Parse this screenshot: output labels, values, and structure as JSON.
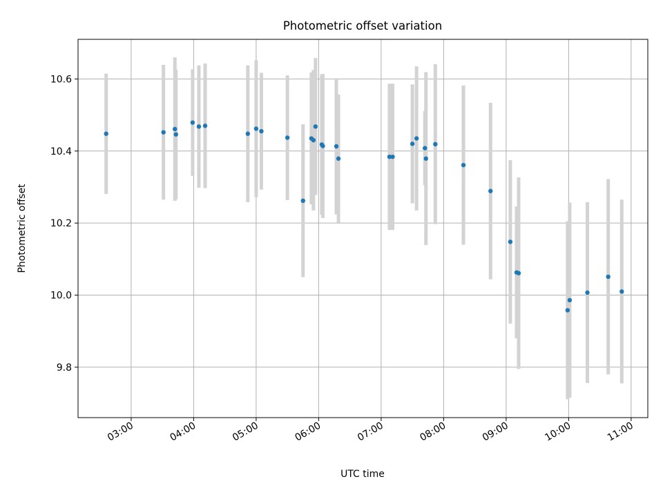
{
  "chart_data": {
    "type": "scatter",
    "title": "Photometric offset variation",
    "xlabel": "UTC time",
    "ylabel": "Photometric offset",
    "x_ticks": [
      "03:00",
      "04:00",
      "05:00",
      "06:00",
      "07:00",
      "08:00",
      "09:00",
      "10:00",
      "11:00"
    ],
    "y_ticks": [
      9.8,
      10.0,
      10.2,
      10.4,
      10.6
    ],
    "xlim": [
      "02:09",
      "11:16"
    ],
    "ylim": [
      9.66,
      10.71
    ],
    "grid": true,
    "colors": {
      "point": "#1f77b4",
      "errorbar": "#d3d3d3"
    },
    "series": [
      {
        "points": [
          {
            "x": "02:36",
            "y": 10.448,
            "err": 0.167
          },
          {
            "x": "03:31",
            "y": 10.452,
            "err": 0.187
          },
          {
            "x": "03:42",
            "y": 10.461,
            "err": 0.199
          },
          {
            "x": "03:43",
            "y": 10.446,
            "err": 0.18
          },
          {
            "x": "03:59",
            "y": 10.479,
            "err": 0.148
          },
          {
            "x": "04:05",
            "y": 10.468,
            "err": 0.17
          },
          {
            "x": "04:11",
            "y": 10.47,
            "err": 0.173
          },
          {
            "x": "04:52",
            "y": 10.448,
            "err": 0.19
          },
          {
            "x": "05:00",
            "y": 10.462,
            "err": 0.19
          },
          {
            "x": "05:05",
            "y": 10.455,
            "err": 0.162
          },
          {
            "x": "05:30",
            "y": 10.437,
            "err": 0.173
          },
          {
            "x": "05:45",
            "y": 10.262,
            "err": 0.212
          },
          {
            "x": "05:53",
            "y": 10.435,
            "err": 0.183
          },
          {
            "x": "05:55",
            "y": 10.43,
            "err": 0.195
          },
          {
            "x": "05:57",
            "y": 10.468,
            "err": 0.19
          },
          {
            "x": "06:03",
            "y": 10.418,
            "err": 0.195
          },
          {
            "x": "06:04",
            "y": 10.414,
            "err": 0.2
          },
          {
            "x": "06:17",
            "y": 10.413,
            "err": 0.189
          },
          {
            "x": "06:19",
            "y": 10.379,
            "err": 0.178
          },
          {
            "x": "07:08",
            "y": 10.384,
            "err": 0.203
          },
          {
            "x": "07:11",
            "y": 10.384,
            "err": 0.203
          },
          {
            "x": "07:30",
            "y": 10.42,
            "err": 0.165
          },
          {
            "x": "07:34",
            "y": 10.435,
            "err": 0.2
          },
          {
            "x": "07:42",
            "y": 10.408,
            "err": 0.103
          },
          {
            "x": "07:43",
            "y": 10.379,
            "err": 0.24
          },
          {
            "x": "07:52",
            "y": 10.419,
            "err": 0.222
          },
          {
            "x": "08:19",
            "y": 10.361,
            "err": 0.221
          },
          {
            "x": "08:45",
            "y": 10.289,
            "err": 0.245
          },
          {
            "x": "09:04",
            "y": 10.148,
            "err": 0.227
          },
          {
            "x": "09:10",
            "y": 10.063,
            "err": 0.183
          },
          {
            "x": "09:12",
            "y": 10.061,
            "err": 0.266
          },
          {
            "x": "09:59",
            "y": 9.958,
            "err": 0.247
          },
          {
            "x": "10:01",
            "y": 9.986,
            "err": 0.271
          },
          {
            "x": "10:18",
            "y": 10.007,
            "err": 0.251
          },
          {
            "x": "10:38",
            "y": 10.051,
            "err": 0.271
          },
          {
            "x": "10:51",
            "y": 10.01,
            "err": 0.255
          }
        ]
      }
    ]
  }
}
